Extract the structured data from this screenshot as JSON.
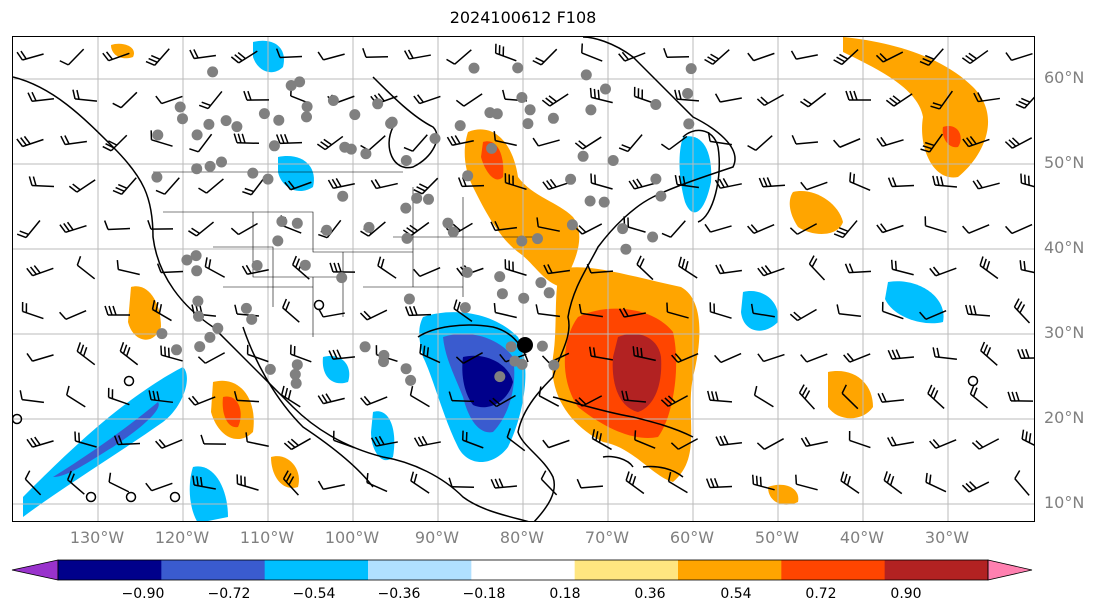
{
  "title": "2024100612 F108",
  "lat_labels": [
    "60°N",
    "50°N",
    "40°N",
    "30°N",
    "20°N",
    "10°N"
  ],
  "lon_labels": [
    "130°W",
    "120°W",
    "110°W",
    "100°W",
    "90°W",
    "80°W",
    "70°W",
    "60°W",
    "50°W",
    "40°W",
    "30°W"
  ],
  "colorbar": {
    "ticks": [
      "−0.90",
      "−0.72",
      "−0.54",
      "−0.36",
      "−0.18",
      "0.18",
      "0.36",
      "0.54",
      "0.72",
      "0.90"
    ],
    "colors": [
      "#9932cc",
      "#00008b",
      "#3a5bcf",
      "#00bfff",
      "#b0e0ff",
      "#ffffff",
      "#ffe680",
      "#ffa500",
      "#ff4500",
      "#b22222",
      "#ff80b0"
    ]
  },
  "map": {
    "lon_range": [
      -140,
      -20
    ],
    "lat_range": [
      8,
      65
    ],
    "grid": true
  }
}
